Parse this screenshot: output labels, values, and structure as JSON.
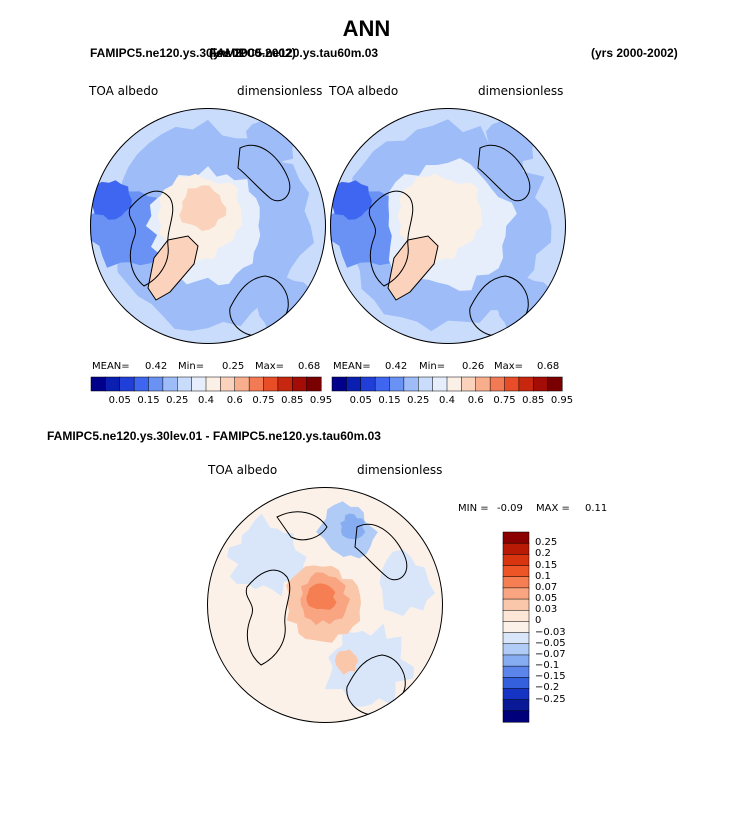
{
  "figure_title": "ANN",
  "top_case_a": "FAMIPC5.ne120.ys.30lev.01",
  "top_case_b": "FAMIPC5.ne120.ys.tau60m.03",
  "top_years_a": "(yrs 2000-2002)",
  "top_years_b": "(yrs 2000-2002)",
  "bottom_title": "FAMIPC5.ne120.ys.30lev.01 - FAMIPC5.ne120.ys.tau60m.03",
  "chart_data": [
    {
      "type": "heatmap",
      "projection": "north polar stereographic",
      "field": "TOA albedo",
      "units": "dimensionless",
      "stats": {
        "mean_label": "MEAN=",
        "mean": "0.42",
        "min_label": "Min=",
        "min": "0.25",
        "max_label": "Max=",
        "max": "0.68"
      },
      "levels": [
        "0.05",
        "0.15",
        "0.25",
        "0.4",
        "0.6",
        "0.75",
        "0.85",
        "0.95"
      ],
      "colors": [
        "#00008B",
        "#0a1fb0",
        "#1f3fd8",
        "#3f66f0",
        "#6a92f5",
        "#9dbcf8",
        "#c9dcfb",
        "#e6eefc",
        "#faf0e6",
        "#fbd3bd",
        "#f8ad8c",
        "#f27b56",
        "#e84d28",
        "#c7260f",
        "#a30d05",
        "#7a0000"
      ]
    },
    {
      "type": "heatmap",
      "projection": "north polar stereographic",
      "field": "TOA albedo",
      "units": "dimensionless",
      "stats": {
        "mean_label": "MEAN=",
        "mean": "0.42",
        "min_label": "Min=",
        "min": "0.26",
        "max_label": "Max=",
        "max": "0.68"
      },
      "levels": [
        "0.05",
        "0.15",
        "0.25",
        "0.4",
        "0.6",
        "0.75",
        "0.85",
        "0.95"
      ],
      "colors": [
        "#00008B",
        "#0a1fb0",
        "#1f3fd8",
        "#3f66f0",
        "#6a92f5",
        "#9dbcf8",
        "#c9dcfb",
        "#e6eefc",
        "#faf0e6",
        "#fbd3bd",
        "#f8ad8c",
        "#f27b56",
        "#e84d28",
        "#c7260f",
        "#a30d05",
        "#7a0000"
      ]
    },
    {
      "type": "heatmap",
      "projection": "north polar stereographic",
      "field": "TOA albedo",
      "units": "dimensionless",
      "stats": {
        "min_label": "MIN =",
        "min": "-0.09",
        "max_label": "MAX =",
        "max": "0.11"
      },
      "levels": [
        "0.25",
        "0.2",
        "0.15",
        "0.1",
        "0.07",
        "0.05",
        "0.03",
        "0",
        "−0.03",
        "−0.05",
        "−0.07",
        "−0.1",
        "−0.15",
        "−0.2",
        "−0.25"
      ],
      "colors": [
        "#8b0000",
        "#b81a05",
        "#d8340f",
        "#ee5526",
        "#f57f52",
        "#f9a581",
        "#fbc7aa",
        "#fde6d6",
        "#fbf1e8",
        "#d9e6fa",
        "#b0ccf6",
        "#86acf1",
        "#5b85ea",
        "#3460de",
        "#1634c4",
        "#0a1a96",
        "#00007a"
      ]
    }
  ]
}
